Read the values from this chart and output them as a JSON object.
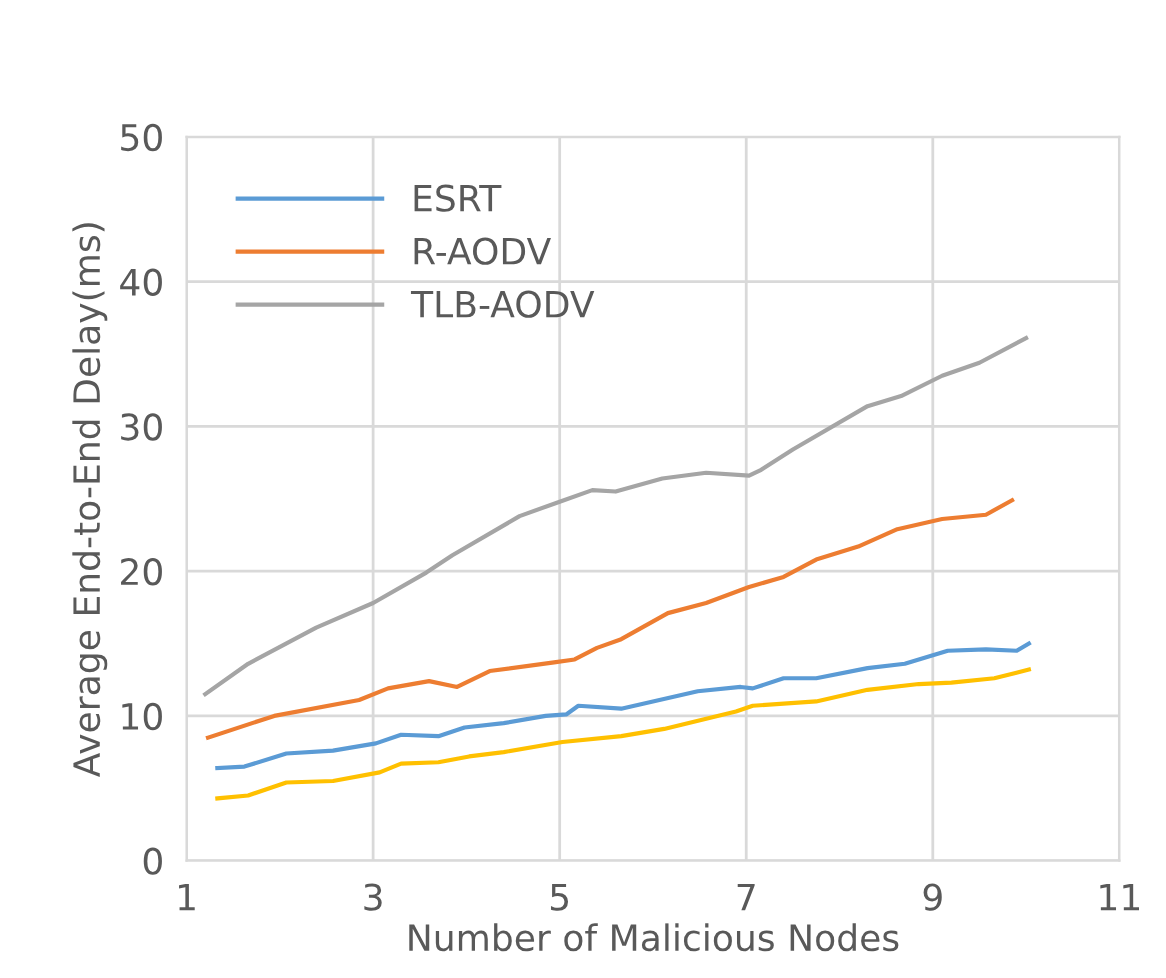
{
  "chart_data": {
    "type": "line",
    "xlabel": "Number of Malicious Nodes",
    "ylabel": "Average End-to-End Delay(ms)",
    "xlim": [
      1,
      11
    ],
    "xticks": [
      1,
      3,
      5,
      7,
      9,
      11
    ],
    "ylim": [
      0,
      50
    ],
    "yticks": [
      0,
      10,
      20,
      30,
      40,
      50
    ],
    "grid": true,
    "legend": "top left",
    "series": [
      {
        "name": "ESRT",
        "color": "#5b9bd5",
        "x": [
          1.33,
          1.62,
          2.07,
          2.57,
          3.03,
          3.3,
          3.7,
          3.98,
          4.4,
          4.85,
          5.07,
          5.2,
          5.66,
          6.48,
          6.94,
          7.07,
          7.4,
          7.75,
          8.3,
          8.7,
          9.16,
          9.57,
          9.9,
          10.03
        ],
        "values": [
          6.4,
          6.5,
          7.4,
          7.6,
          8.1,
          8.7,
          8.6,
          9.2,
          9.5,
          10.0,
          10.1,
          10.7,
          10.5,
          11.7,
          12.0,
          11.9,
          12.6,
          12.6,
          13.3,
          13.6,
          14.5,
          14.6,
          14.5,
          15.0
        ]
      },
      {
        "name": "R-AODV",
        "color": "#ed7d31",
        "x": [
          1.23,
          1.94,
          2.85,
          3.16,
          3.6,
          3.9,
          4.25,
          4.94,
          5.16,
          5.4,
          5.66,
          6.16,
          6.57,
          7.03,
          7.4,
          7.75,
          8.2,
          8.62,
          9.1,
          9.57,
          9.85
        ],
        "values": [
          8.5,
          10.0,
          11.1,
          11.9,
          12.4,
          12.0,
          13.1,
          13.7,
          13.9,
          14.7,
          15.3,
          17.1,
          17.8,
          18.9,
          19.6,
          20.8,
          21.7,
          22.9,
          23.6,
          23.9,
          24.9
        ]
      },
      {
        "name": "TLB-AODV",
        "color": "#a5a5a5",
        "x": [
          1.2,
          1.66,
          2.39,
          3.0,
          3.57,
          3.85,
          4.57,
          5.0,
          5.35,
          5.6,
          6.1,
          6.57,
          7.03,
          7.16,
          7.5,
          8.3,
          8.66,
          9.1,
          9.5,
          10.0
        ],
        "values": [
          11.5,
          13.6,
          16.1,
          17.8,
          19.9,
          21.1,
          23.8,
          24.8,
          25.6,
          25.5,
          26.4,
          26.8,
          26.6,
          27.0,
          28.4,
          31.4,
          32.1,
          33.5,
          34.4,
          36.1
        ]
      },
      {
        "color": "#ffc000",
        "x": [
          1.33,
          1.66,
          2.07,
          2.57,
          3.07,
          3.3,
          3.7,
          4.03,
          4.4,
          5.03,
          5.66,
          6.12,
          6.89,
          7.07,
          7.75,
          8.3,
          8.85,
          9.2,
          9.66,
          10.03
        ],
        "values": [
          4.3,
          4.5,
          5.4,
          5.5,
          6.1,
          6.7,
          6.8,
          7.2,
          7.5,
          8.2,
          8.6,
          9.1,
          10.3,
          10.7,
          11.0,
          11.8,
          12.2,
          12.3,
          12.6,
          13.2
        ]
      }
    ]
  }
}
